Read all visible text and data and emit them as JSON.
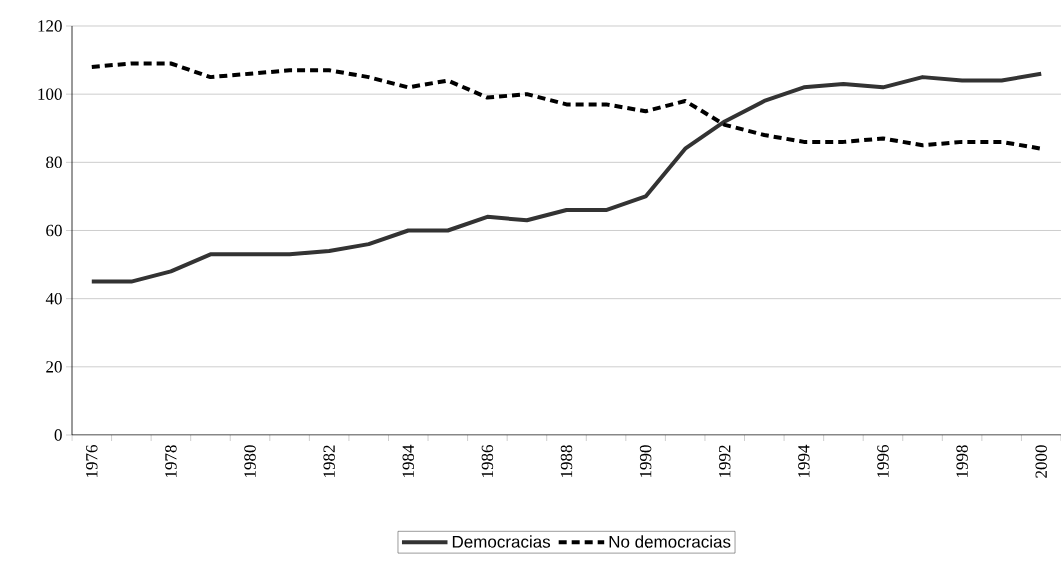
{
  "chart_data": {
    "type": "line",
    "categories": [
      "1976",
      null,
      "1978",
      null,
      "1980",
      null,
      "1982",
      null,
      "1984",
      null,
      "1986",
      null,
      "1988",
      null,
      "1990",
      null,
      "1992",
      null,
      "1994",
      null,
      "1996",
      null,
      "1998",
      null,
      "2000"
    ],
    "series": [
      {
        "name": "Democracias",
        "color": "#333333",
        "line_style": "solid",
        "values": [
          45,
          45,
          48,
          53,
          53,
          53,
          54,
          56,
          60,
          60,
          64,
          63,
          66,
          66,
          70,
          84,
          92,
          98,
          102,
          103,
          102,
          105,
          104,
          104,
          106
        ]
      },
      {
        "name": "No democracias",
        "color": "#000000",
        "line_style": "dashed",
        "values": [
          108,
          109,
          109,
          105,
          106,
          107,
          107,
          105,
          102,
          104,
          99,
          100,
          97,
          97,
          95,
          98,
          91,
          88,
          86,
          86,
          87,
          85,
          86,
          86,
          84
        ]
      }
    ],
    "ylim": [
      0,
      120
    ],
    "yticks": [
      0,
      20,
      40,
      60,
      80,
      100,
      120
    ],
    "grid": "y",
    "legend": "bottom",
    "marker": "none"
  }
}
